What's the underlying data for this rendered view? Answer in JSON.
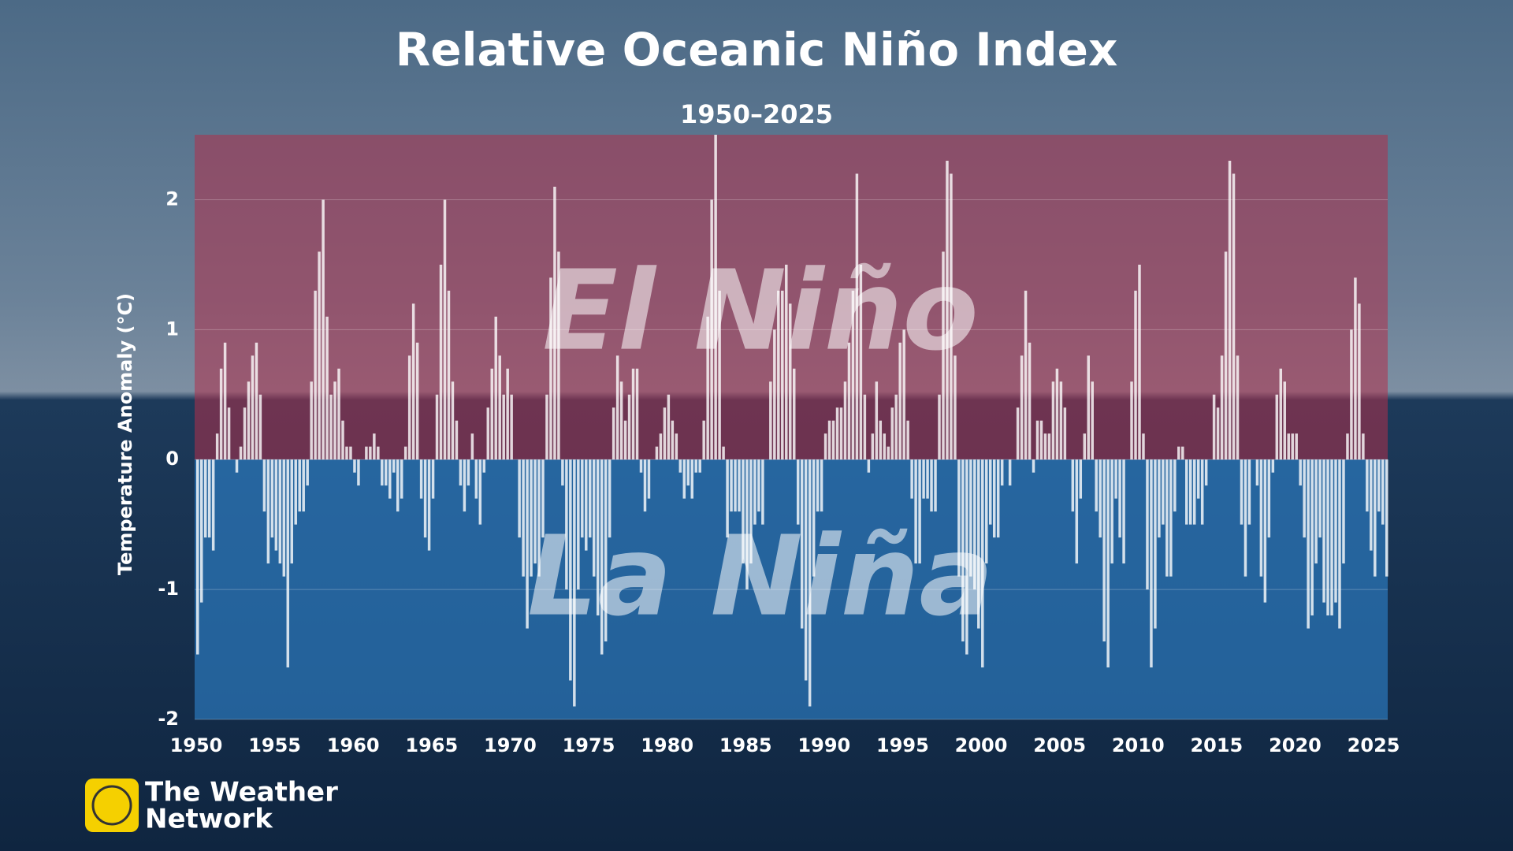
{
  "chart_data": {
    "type": "bar",
    "title": "Relative Oceanic Niño Index",
    "subtitle": "1950–2025",
    "ylabel": "Temperature Anomaly (°C)",
    "annotations": [
      "El Niño",
      "La Niña"
    ],
    "color": "#ffffff",
    "grid": true,
    "xlim": [
      1949.9,
      2025.9
    ],
    "xticks": [
      1950,
      1955,
      1960,
      1965,
      1970,
      1975,
      1980,
      1985,
      1990,
      1995,
      2000,
      2005,
      2010,
      2015,
      2020,
      2025
    ],
    "ylim": [
      -2,
      2.5
    ],
    "yticks": [
      -2,
      -1,
      0,
      1,
      2
    ],
    "x": [
      1950,
      1950.25,
      1950.5,
      1950.75,
      1951,
      1951.25,
      1951.5,
      1951.75,
      1952,
      1952.25,
      1952.5,
      1952.75,
      1953,
      1953.25,
      1953.5,
      1953.75,
      1954,
      1954.25,
      1954.5,
      1954.75,
      1955,
      1955.25,
      1955.5,
      1955.75,
      1956,
      1956.25,
      1956.5,
      1956.75,
      1957,
      1957.25,
      1957.5,
      1957.75,
      1958,
      1958.25,
      1958.5,
      1958.75,
      1959,
      1959.25,
      1959.5,
      1959.75,
      1960,
      1960.25,
      1960.5,
      1960.75,
      1961,
      1961.25,
      1961.5,
      1961.75,
      1962,
      1962.25,
      1962.5,
      1962.75,
      1963,
      1963.25,
      1963.5,
      1963.75,
      1964,
      1964.25,
      1964.5,
      1964.75,
      1965,
      1965.25,
      1965.5,
      1965.75,
      1966,
      1966.25,
      1966.5,
      1966.75,
      1967,
      1967.25,
      1967.5,
      1967.75,
      1968,
      1968.25,
      1968.5,
      1968.75,
      1969,
      1969.25,
      1969.5,
      1969.75,
      1970,
      1970.25,
      1970.5,
      1970.75,
      1971,
      1971.25,
      1971.5,
      1971.75,
      1972,
      1972.25,
      1972.5,
      1972.75,
      1973,
      1973.25,
      1973.5,
      1973.75,
      1974,
      1974.25,
      1974.5,
      1974.75,
      1975,
      1975.25,
      1975.5,
      1975.75,
      1976,
      1976.25,
      1976.5,
      1976.75,
      1977,
      1977.25,
      1977.5,
      1977.75,
      1978,
      1978.25,
      1978.5,
      1978.75,
      1979,
      1979.25,
      1979.5,
      1979.75,
      1980,
      1980.25,
      1980.5,
      1980.75,
      1981,
      1981.25,
      1981.5,
      1981.75,
      1982,
      1982.25,
      1982.5,
      1982.75,
      1983,
      1983.25,
      1983.5,
      1983.75,
      1984,
      1984.25,
      1984.5,
      1984.75,
      1985,
      1985.25,
      1985.5,
      1985.75,
      1986,
      1986.25,
      1986.5,
      1986.75,
      1987,
      1987.25,
      1987.5,
      1987.75,
      1988,
      1988.25,
      1988.5,
      1988.75,
      1989,
      1989.25,
      1989.5,
      1989.75,
      1990,
      1990.25,
      1990.5,
      1990.75,
      1991,
      1991.25,
      1991.5,
      1991.75,
      1992,
      1992.25,
      1992.5,
      1992.75,
      1993,
      1993.25,
      1993.5,
      1993.75,
      1994,
      1994.25,
      1994.5,
      1994.75,
      1995,
      1995.25,
      1995.5,
      1995.75,
      1996,
      1996.25,
      1996.5,
      1996.75,
      1997,
      1997.25,
      1997.5,
      1997.75,
      1998,
      1998.25,
      1998.5,
      1998.75,
      1999,
      1999.25,
      1999.5,
      1999.75,
      2000,
      2000.25,
      2000.5,
      2000.75,
      2001,
      2001.25,
      2001.5,
      2001.75,
      2002,
      2002.25,
      2002.5,
      2002.75,
      2003,
      2003.25,
      2003.5,
      2003.75,
      2004,
      2004.25,
      2004.5,
      2004.75,
      2005,
      2005.25,
      2005.5,
      2005.75,
      2006,
      2006.25,
      2006.5,
      2006.75,
      2007,
      2007.25,
      2007.5,
      2007.75,
      2008,
      2008.25,
      2008.5,
      2008.75,
      2009,
      2009.25,
      2009.5,
      2009.75,
      2010,
      2010.25,
      2010.5,
      2010.75,
      2011,
      2011.25,
      2011.5,
      2011.75,
      2012,
      2012.25,
      2012.5,
      2012.75,
      2013,
      2013.25,
      2013.5,
      2013.75,
      2014,
      2014.25,
      2014.5,
      2014.75,
      2015,
      2015.25,
      2015.5,
      2015.75,
      2016,
      2016.25,
      2016.5,
      2016.75,
      2017,
      2017.25,
      2017.5,
      2017.75,
      2018,
      2018.25,
      2018.5,
      2018.75,
      2019,
      2019.25,
      2019.5,
      2019.75,
      2020,
      2020.25,
      2020.5,
      2020.75,
      2021,
      2021.25,
      2021.5,
      2021.75,
      2022,
      2022.25,
      2022.5,
      2022.75,
      2023,
      2023.25,
      2023.5,
      2023.75,
      2024,
      2024.25,
      2024.5,
      2024.75,
      2025,
      2025.25,
      2025.5,
      2025.75
    ],
    "values": [
      -1.5,
      -1.1,
      -0.6,
      -0.6,
      -0.7,
      0.2,
      0.7,
      0.9,
      0.4,
      0.0,
      -0.1,
      0.1,
      0.4,
      0.6,
      0.8,
      0.9,
      0.5,
      -0.4,
      -0.8,
      -0.6,
      -0.7,
      -0.8,
      -0.9,
      -1.6,
      -0.8,
      -0.5,
      -0.4,
      -0.4,
      -0.2,
      0.6,
      1.3,
      1.6,
      2.0,
      1.1,
      0.5,
      0.6,
      0.7,
      0.3,
      0.1,
      0.1,
      -0.1,
      -0.2,
      0.0,
      0.1,
      0.1,
      0.2,
      0.1,
      -0.2,
      -0.2,
      -0.3,
      -0.1,
      -0.4,
      -0.3,
      0.1,
      0.8,
      1.2,
      0.9,
      -0.3,
      -0.6,
      -0.7,
      -0.3,
      0.5,
      1.5,
      2.0,
      1.3,
      0.6,
      0.3,
      -0.2,
      -0.4,
      -0.2,
      0.2,
      -0.3,
      -0.5,
      -0.1,
      0.4,
      0.7,
      1.1,
      0.8,
      0.5,
      0.7,
      0.5,
      0.0,
      -0.6,
      -0.9,
      -1.3,
      -0.9,
      -0.8,
      -0.9,
      -0.6,
      0.5,
      1.4,
      2.1,
      1.6,
      -0.2,
      -1.0,
      -1.7,
      -1.9,
      -1.0,
      -0.6,
      -0.7,
      -0.6,
      -0.9,
      -1.2,
      -1.5,
      -1.4,
      -0.6,
      0.4,
      0.8,
      0.6,
      0.3,
      0.5,
      0.7,
      0.7,
      -0.1,
      -0.4,
      -0.3,
      0.0,
      0.1,
      0.2,
      0.4,
      0.5,
      0.3,
      0.2,
      -0.1,
      -0.3,
      -0.2,
      -0.3,
      -0.1,
      -0.1,
      0.3,
      1.1,
      2.0,
      2.5,
      1.3,
      0.1,
      -0.6,
      -0.4,
      -0.4,
      -0.4,
      -0.8,
      -1.0,
      -0.8,
      -0.5,
      -0.4,
      -0.5,
      0.0,
      0.6,
      1.0,
      1.3,
      1.3,
      1.5,
      1.2,
      0.7,
      -0.5,
      -1.3,
      -1.7,
      -1.9,
      -0.9,
      -0.4,
      -0.4,
      0.2,
      0.3,
      0.3,
      0.4,
      0.4,
      0.6,
      0.9,
      1.3,
      2.2,
      1.5,
      0.5,
      -0.1,
      0.2,
      0.6,
      0.3,
      0.2,
      0.1,
      0.4,
      0.5,
      0.9,
      1.0,
      0.3,
      -0.3,
      -0.8,
      -0.8,
      -0.3,
      -0.3,
      -0.4,
      -0.4,
      0.5,
      1.6,
      2.3,
      2.2,
      0.8,
      -0.9,
      -1.4,
      -1.5,
      -0.9,
      -1.0,
      -1.3,
      -1.6,
      -0.8,
      -0.5,
      -0.6,
      -0.6,
      -0.2,
      0.0,
      -0.2,
      0.0,
      0.4,
      0.8,
      1.3,
      0.9,
      -0.1,
      0.3,
      0.3,
      0.2,
      0.2,
      0.6,
      0.7,
      0.6,
      0.4,
      0.0,
      -0.4,
      -0.8,
      -0.3,
      0.2,
      0.8,
      0.6,
      -0.4,
      -0.6,
      -1.4,
      -1.6,
      -0.8,
      -0.3,
      -0.6,
      -0.8,
      0.0,
      0.6,
      1.3,
      1.5,
      0.2,
      -1.0,
      -1.6,
      -1.3,
      -0.6,
      -0.5,
      -0.9,
      -0.9,
      -0.4,
      0.1,
      0.1,
      -0.5,
      -0.5,
      -0.5,
      -0.3,
      -0.5,
      -0.2,
      0.0,
      0.5,
      0.4,
      0.8,
      1.6,
      2.3,
      2.2,
      0.8,
      -0.5,
      -0.9,
      -0.5,
      0.0,
      -0.2,
      -0.9,
      -1.1,
      -0.6,
      -0.1,
      0.5,
      0.7,
      0.6,
      0.2,
      0.2,
      0.2,
      -0.2,
      -0.6,
      -1.3,
      -1.2,
      -0.8,
      -0.6,
      -1.1,
      -1.2,
      -1.2,
      -1.1,
      -1.3,
      -0.8,
      0.2,
      1.0,
      1.4,
      1.2,
      0.2,
      -0.4,
      -0.7,
      -0.9,
      -0.4,
      -0.5,
      -0.9
    ]
  },
  "branding": [
    "The Weather",
    "Network"
  ]
}
